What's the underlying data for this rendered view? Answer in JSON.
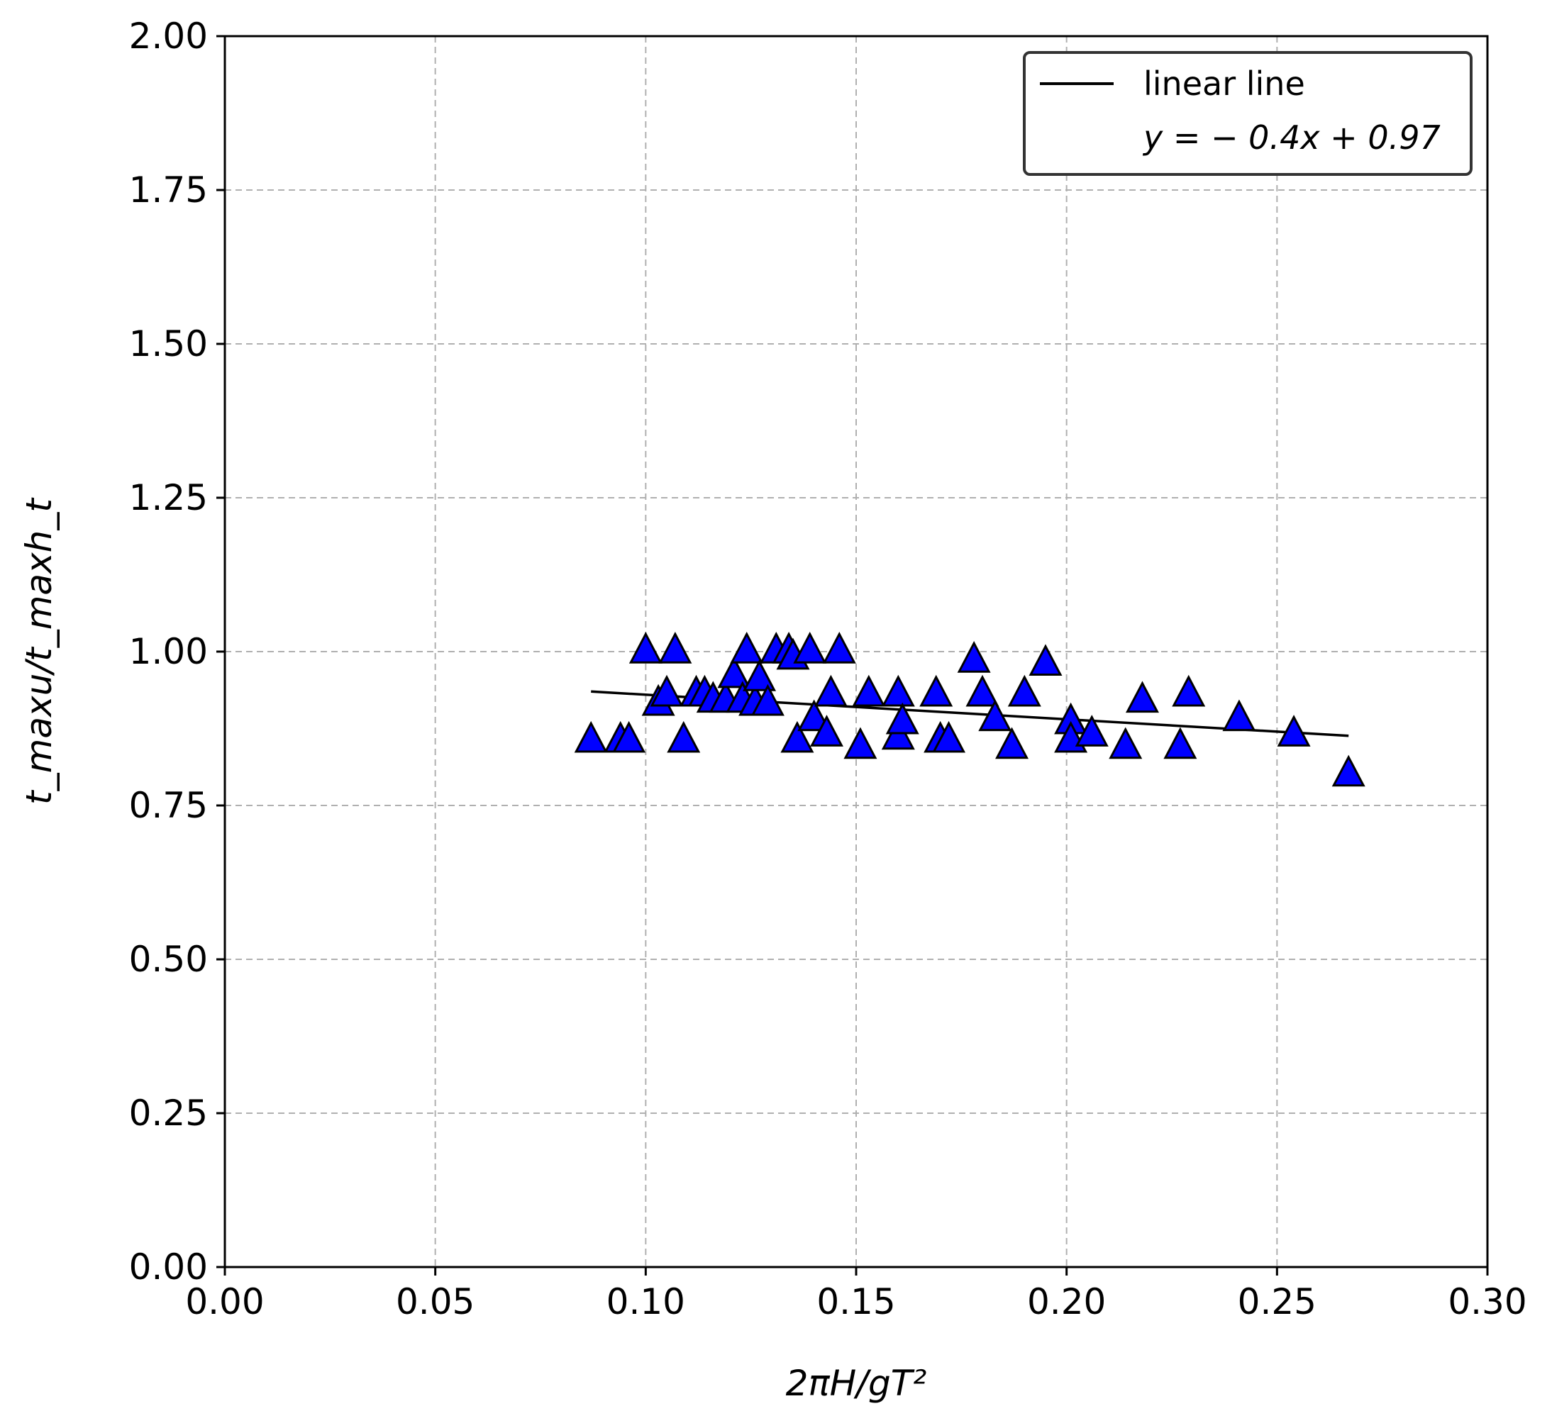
{
  "chart_data": {
    "type": "scatter",
    "xlabel": "2πH/gT²",
    "ylabel": "t_maxu/t_maxh_t",
    "xlim": [
      0.0,
      0.3
    ],
    "ylim": [
      0.0,
      2.0
    ],
    "xticks": [
      "0.00",
      "0.05",
      "0.10",
      "0.15",
      "0.20",
      "0.25",
      "0.30"
    ],
    "yticks": [
      "0.00",
      "0.25",
      "0.50",
      "0.75",
      "1.00",
      "1.25",
      "1.50",
      "1.75",
      "2.00"
    ],
    "grid": true,
    "legend_position": "top-right",
    "marker_color": "#0000ff",
    "legend": {
      "line_label": "linear line",
      "equation": "y = − 0.4x + 0.97"
    },
    "fit_line": {
      "slope": -0.4,
      "intercept": 0.97,
      "x_start": 0.087,
      "x_end": 0.267
    },
    "points": [
      {
        "x": 0.087,
        "y": 0.855
      },
      {
        "x": 0.094,
        "y": 0.855
      },
      {
        "x": 0.096,
        "y": 0.855
      },
      {
        "x": 0.1,
        "y": 1.0
      },
      {
        "x": 0.103,
        "y": 0.915
      },
      {
        "x": 0.105,
        "y": 0.93
      },
      {
        "x": 0.107,
        "y": 1.0
      },
      {
        "x": 0.109,
        "y": 0.855
      },
      {
        "x": 0.112,
        "y": 0.93
      },
      {
        "x": 0.114,
        "y": 0.93
      },
      {
        "x": 0.116,
        "y": 0.92
      },
      {
        "x": 0.119,
        "y": 0.92
      },
      {
        "x": 0.121,
        "y": 0.96
      },
      {
        "x": 0.123,
        "y": 0.92
      },
      {
        "x": 0.124,
        "y": 1.0
      },
      {
        "x": 0.126,
        "y": 0.915
      },
      {
        "x": 0.127,
        "y": 0.955
      },
      {
        "x": 0.129,
        "y": 0.915
      },
      {
        "x": 0.131,
        "y": 1.0
      },
      {
        "x": 0.134,
        "y": 1.0
      },
      {
        "x": 0.135,
        "y": 0.99
      },
      {
        "x": 0.136,
        "y": 0.855
      },
      {
        "x": 0.139,
        "y": 1.0
      },
      {
        "x": 0.14,
        "y": 0.89
      },
      {
        "x": 0.143,
        "y": 0.865
      },
      {
        "x": 0.144,
        "y": 0.93
      },
      {
        "x": 0.146,
        "y": 1.0
      },
      {
        "x": 0.151,
        "y": 0.845
      },
      {
        "x": 0.153,
        "y": 0.93
      },
      {
        "x": 0.16,
        "y": 0.86
      },
      {
        "x": 0.16,
        "y": 0.93
      },
      {
        "x": 0.161,
        "y": 0.885
      },
      {
        "x": 0.169,
        "y": 0.93
      },
      {
        "x": 0.17,
        "y": 0.855
      },
      {
        "x": 0.172,
        "y": 0.855
      },
      {
        "x": 0.178,
        "y": 0.985
      },
      {
        "x": 0.18,
        "y": 0.93
      },
      {
        "x": 0.183,
        "y": 0.89
      },
      {
        "x": 0.187,
        "y": 0.845
      },
      {
        "x": 0.19,
        "y": 0.93
      },
      {
        "x": 0.195,
        "y": 0.98
      },
      {
        "x": 0.201,
        "y": 0.885
      },
      {
        "x": 0.201,
        "y": 0.855
      },
      {
        "x": 0.206,
        "y": 0.865
      },
      {
        "x": 0.214,
        "y": 0.845
      },
      {
        "x": 0.218,
        "y": 0.92
      },
      {
        "x": 0.227,
        "y": 0.845
      },
      {
        "x": 0.229,
        "y": 0.93
      },
      {
        "x": 0.241,
        "y": 0.89
      },
      {
        "x": 0.254,
        "y": 0.865
      },
      {
        "x": 0.267,
        "y": 0.8
      }
    ]
  }
}
